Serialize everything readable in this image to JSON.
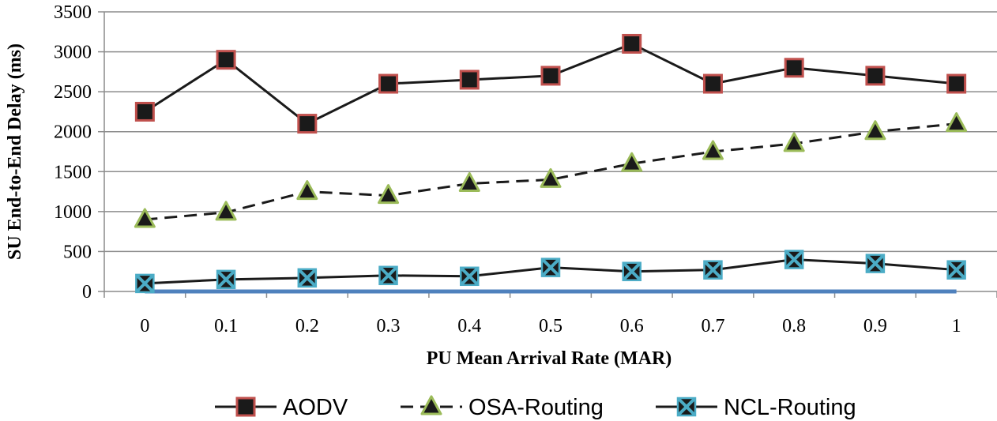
{
  "chart_data": {
    "type": "line",
    "title": "",
    "xlabel": "PU Mean Arrival Rate (MAR)",
    "ylabel": "SU End-to-End Delay (ms)",
    "categories": [
      "0",
      "0.1",
      "0.2",
      "0.3",
      "0.4",
      "0.5",
      "0.6",
      "0.7",
      "0.8",
      "0.9",
      "1"
    ],
    "yticks": [
      "0",
      "500",
      "1000",
      "1500",
      "2000",
      "2500",
      "3000",
      "3500"
    ],
    "ylim": [
      0,
      3500
    ],
    "grid": true,
    "legend_position": "bottom",
    "series": [
      {
        "name": "AODV",
        "values": [
          2250,
          2900,
          2100,
          2600,
          2650,
          2700,
          3100,
          2600,
          2800,
          2700,
          2600
        ],
        "line_color": "#1a1a1a",
        "line_style": "solid",
        "marker": "square",
        "marker_fill": "#1a1a1a",
        "marker_edge": "#c0504d"
      },
      {
        "name": "OSA-Routing",
        "values": [
          900,
          990,
          1250,
          1200,
          1350,
          1400,
          1600,
          1750,
          1850,
          2000,
          2100
        ],
        "line_color": "#1a1a1a",
        "line_style": "dashed",
        "marker": "triangle",
        "marker_fill": "#1a1a1a",
        "marker_edge": "#9bbb59"
      },
      {
        "name": "NCL-Routing",
        "values": [
          100,
          150,
          170,
          200,
          190,
          300,
          250,
          270,
          400,
          350,
          270
        ],
        "line_color": "#1a1a1a",
        "line_style": "solid",
        "marker": "x-square",
        "marker_fill": "#1a1a1a",
        "marker_edge": "#4bacc6"
      },
      {
        "name": "",
        "values": [
          0,
          0,
          0,
          0,
          0,
          0,
          0,
          0,
          0,
          0,
          0
        ],
        "line_color": "#4f81bd",
        "line_style": "solid",
        "marker": "none",
        "show_in_legend": false
      }
    ]
  }
}
